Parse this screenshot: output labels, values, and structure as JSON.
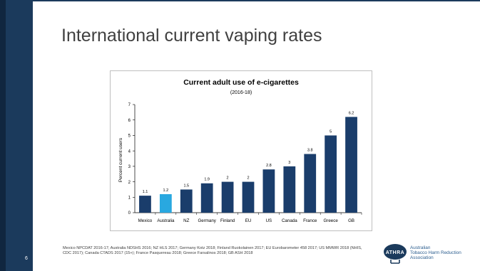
{
  "slide": {
    "title": "International current vaping rates",
    "page_number": "6",
    "source": "Mexico NPCDAT 2016-17; Australia NDSHS 2016; NZ HLS 2017; Germany Kotz 2018; Finland Ruokolainen 2017; EU Eurobarometer 458 2017; US MMWR 2018 (NHIS, CDC 2017); Canada CTADS 2017 (15+); France Pasquereau 2018; Greece Farsalinos 2018; GB ASH 2018",
    "logo": {
      "lines": [
        "Australian",
        "Tobacco Harm Reduction",
        "Association"
      ],
      "mark_letters": "ATHRA"
    },
    "colors": {
      "band": "#1b3a5c",
      "title": "#404040"
    }
  },
  "chart_data": {
    "type": "bar",
    "title": "Current adult use of e-cigarettes",
    "subtitle": "(2016-18)",
    "xlabel": "",
    "ylabel": "Percent current users",
    "ylim": [
      0,
      7
    ],
    "yticks": [
      0,
      1,
      2,
      3,
      4,
      5,
      6,
      7
    ],
    "grid": false,
    "legend": "none",
    "categories": [
      "Mexico",
      "Australia",
      "NZ",
      "Germany",
      "Finland",
      "EU",
      "US",
      "Canada",
      "France",
      "Greece",
      "GB"
    ],
    "values": [
      1.1,
      1.2,
      1.5,
      1.9,
      2,
      2,
      2.8,
      3,
      3.8,
      5,
      6.2
    ],
    "bar_colors": [
      "#1a3d6b",
      "#29a8e0",
      "#1a3d6b",
      "#1a3d6b",
      "#1a3d6b",
      "#1a3d6b",
      "#1a3d6b",
      "#1a3d6b",
      "#1a3d6b",
      "#1a3d6b",
      "#1a3d6b"
    ]
  }
}
